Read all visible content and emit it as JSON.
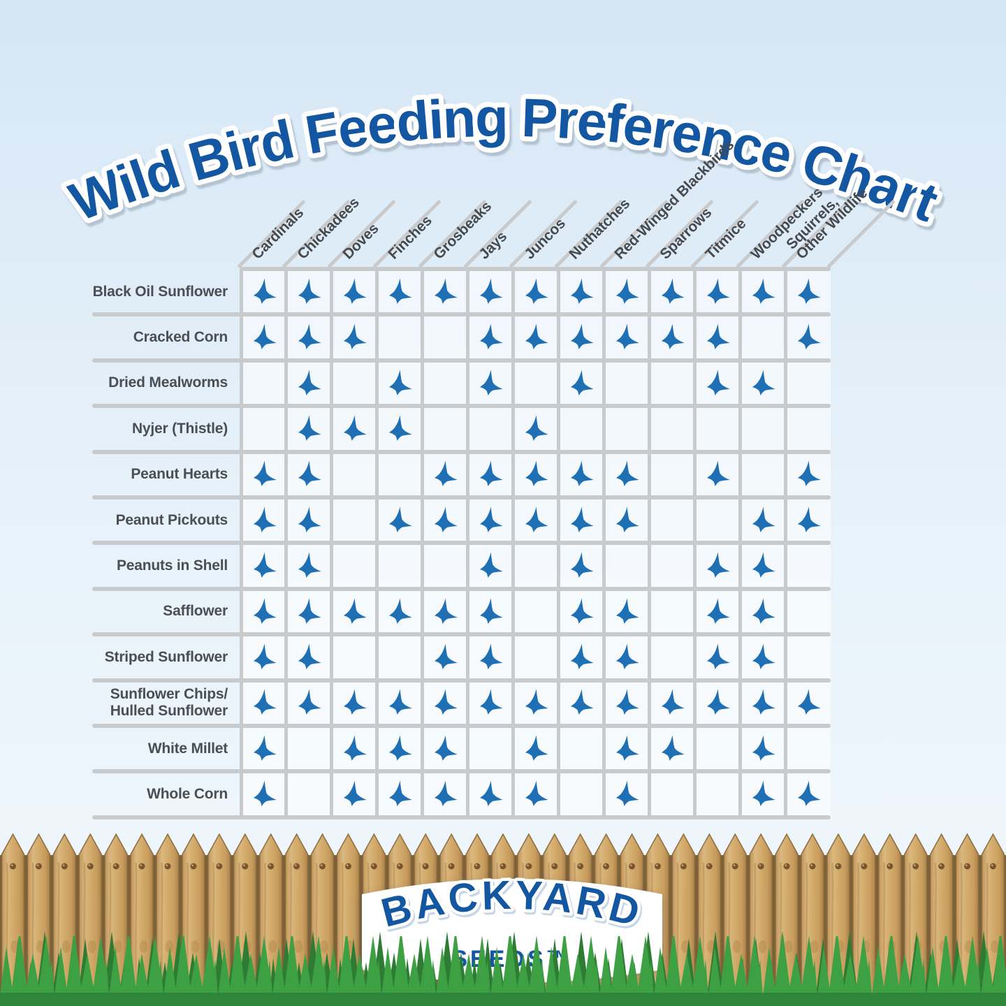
{
  "title": {
    "text": "Wild Bird Feeding Preference Chart"
  },
  "logo": {
    "brand": "BACKYARD",
    "sub": "SEEDS™"
  },
  "colors": {
    "title_blue": "#1356a2",
    "bird_blue": "#1e6fb4",
    "gridline_gray": "#c8cacc",
    "label_gray": "#4b4e52",
    "wood_tan": "#d2a968",
    "grass_green": "#3da043",
    "background_blue": "#dcebf7"
  },
  "icons": {
    "preference_marker": "blue-bird-icon"
  },
  "chart_data": {
    "type": "table",
    "title": "Wild Bird Feeding Preference Chart",
    "columns": [
      "Cardinals",
      "Chickadees",
      "Doves",
      "Finches",
      "Grosbeaks",
      "Jays",
      "Juncos",
      "Nuthatches",
      "Red-Winged Blackbirds",
      "Sparrows",
      "Titmice",
      "Woodpeckers",
      "Squirrels,\nOther Wildlife"
    ],
    "rows": [
      {
        "seed": "Black Oil Sunflower",
        "values": [
          1,
          1,
          1,
          1,
          1,
          1,
          1,
          1,
          1,
          1,
          1,
          1,
          1
        ]
      },
      {
        "seed": "Cracked Corn",
        "values": [
          1,
          1,
          1,
          0,
          0,
          1,
          1,
          1,
          1,
          1,
          1,
          0,
          1
        ]
      },
      {
        "seed": "Dried Mealworms",
        "values": [
          0,
          1,
          0,
          1,
          0,
          1,
          0,
          1,
          0,
          0,
          1,
          1,
          0
        ]
      },
      {
        "seed": "Nyjer (Thistle)",
        "values": [
          0,
          1,
          1,
          1,
          0,
          0,
          1,
          0,
          0,
          0,
          0,
          0,
          0
        ]
      },
      {
        "seed": "Peanut Hearts",
        "values": [
          1,
          1,
          0,
          0,
          1,
          1,
          1,
          1,
          1,
          0,
          1,
          0,
          1
        ]
      },
      {
        "seed": "Peanut Pickouts",
        "values": [
          1,
          1,
          0,
          1,
          1,
          1,
          1,
          1,
          1,
          0,
          0,
          1,
          1
        ]
      },
      {
        "seed": "Peanuts in Shell",
        "values": [
          1,
          1,
          0,
          0,
          0,
          1,
          0,
          1,
          0,
          0,
          1,
          1,
          0
        ]
      },
      {
        "seed": "Safflower",
        "values": [
          1,
          1,
          1,
          1,
          1,
          1,
          0,
          1,
          1,
          0,
          1,
          1,
          0
        ]
      },
      {
        "seed": "Striped Sunflower",
        "values": [
          1,
          1,
          0,
          0,
          1,
          1,
          0,
          1,
          1,
          0,
          1,
          1,
          0
        ]
      },
      {
        "seed": "Sunflower Chips/\nHulled Sunflower",
        "values": [
          1,
          1,
          1,
          1,
          1,
          1,
          1,
          1,
          1,
          1,
          1,
          1,
          1
        ]
      },
      {
        "seed": "White Millet",
        "values": [
          1,
          0,
          1,
          1,
          1,
          0,
          1,
          0,
          1,
          1,
          0,
          1,
          0
        ]
      },
      {
        "seed": "Whole Corn",
        "values": [
          1,
          0,
          1,
          1,
          1,
          1,
          1,
          0,
          1,
          0,
          0,
          1,
          1
        ]
      }
    ]
  }
}
